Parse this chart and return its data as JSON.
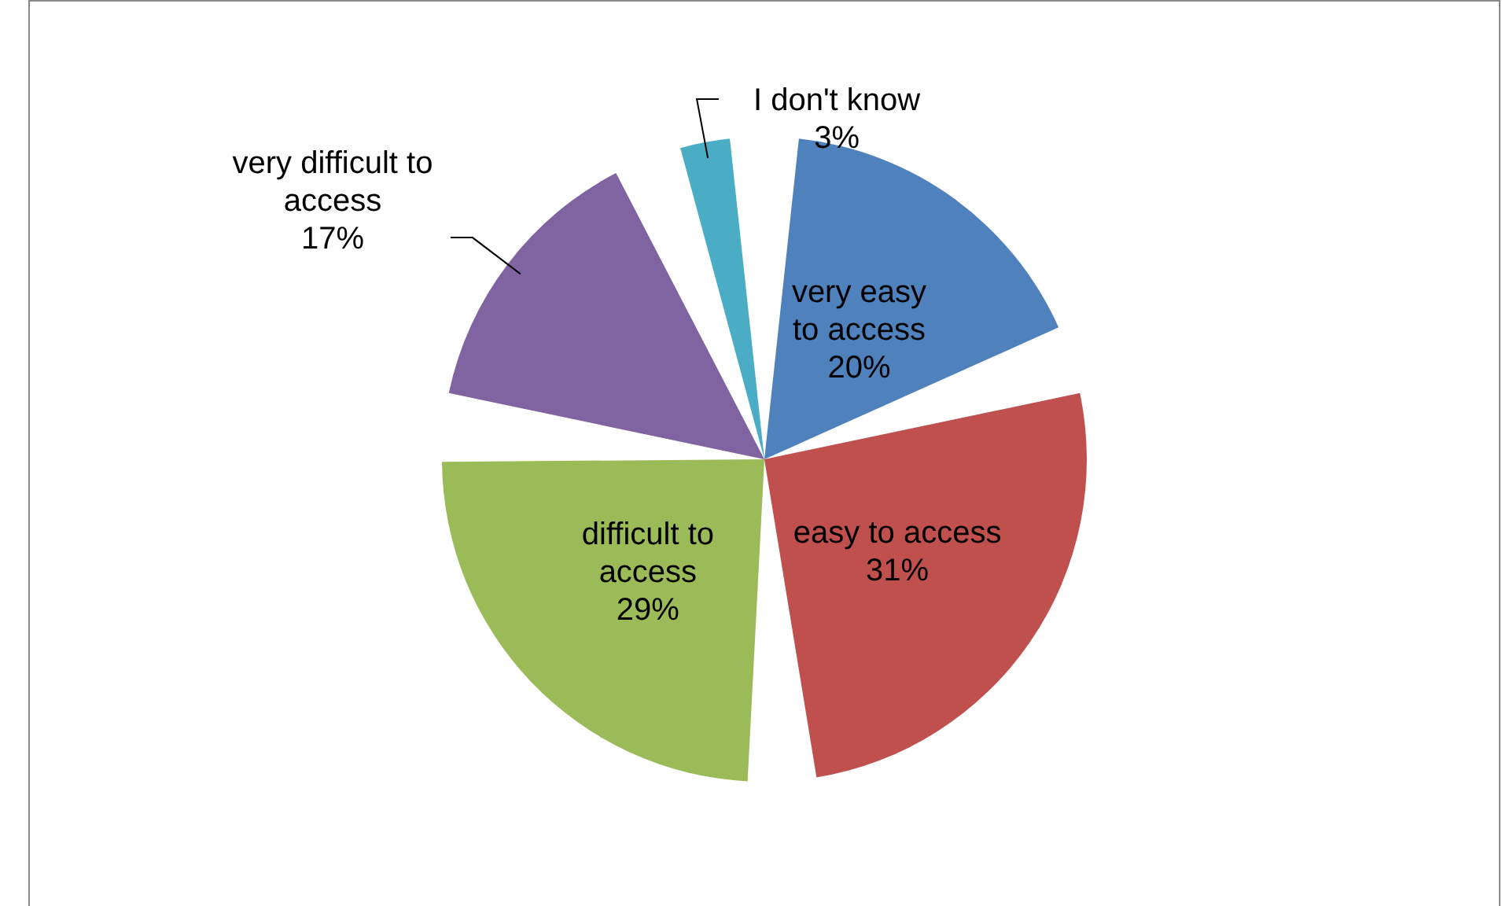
{
  "chart_data": {
    "type": "pie",
    "categories": [
      "very easy to access",
      "easy to access",
      "difficult to access",
      "very difficult to access",
      "I don't know"
    ],
    "values": [
      20,
      31,
      29,
      17,
      3
    ],
    "value_labels": [
      "20%",
      "31%",
      "29%",
      "17%",
      "3%"
    ],
    "colors": [
      "#4f81bd",
      "#c0504d",
      "#9bbb59",
      "#8064a2",
      "#4bacc6"
    ],
    "legend": false
  }
}
